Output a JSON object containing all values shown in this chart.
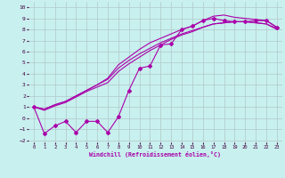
{
  "xlabel": "Windchill (Refroidissement éolien,°C)",
  "xlim": [
    -0.5,
    23.5
  ],
  "ylim": [
    -2.2,
    10.5
  ],
  "xticks": [
    0,
    1,
    2,
    3,
    4,
    5,
    6,
    7,
    8,
    9,
    10,
    11,
    12,
    13,
    14,
    15,
    16,
    17,
    18,
    19,
    20,
    21,
    22,
    23
  ],
  "yticks": [
    -2,
    -1,
    0,
    1,
    2,
    3,
    4,
    5,
    6,
    7,
    8,
    9,
    10
  ],
  "bg_color": "#c8f0ee",
  "line_color": "#aa00aa",
  "grid_color": "#b0c8c8",
  "line_jagged": [
    1,
    -1.4,
    -0.7,
    -0.3,
    -1.3,
    -0.3,
    -0.3,
    -1.3,
    0.1,
    2.5,
    4.5,
    4.7,
    6.6,
    6.7,
    8.0,
    8.3,
    8.8,
    9.0,
    8.8,
    8.7,
    8.7,
    8.8,
    8.8,
    8.2
  ],
  "line_smooth1": [
    1,
    0.8,
    1.2,
    1.5,
    2.0,
    2.5,
    3.0,
    3.5,
    4.5,
    5.2,
    5.8,
    6.3,
    6.8,
    7.2,
    7.6,
    7.9,
    8.2,
    8.5,
    8.6,
    8.7,
    8.7,
    8.6,
    8.5,
    8.1
  ],
  "line_smooth2": [
    1,
    0.8,
    1.2,
    1.5,
    2.0,
    2.5,
    3.0,
    3.6,
    4.8,
    5.5,
    6.2,
    6.8,
    7.2,
    7.6,
    8.0,
    8.3,
    8.8,
    9.2,
    9.3,
    9.1,
    9.0,
    8.9,
    8.8,
    8.2
  ],
  "line_smooth3": [
    1,
    0.7,
    1.1,
    1.4,
    1.9,
    2.4,
    2.8,
    3.2,
    4.2,
    4.9,
    5.5,
    6.1,
    6.6,
    7.1,
    7.5,
    7.8,
    8.2,
    8.5,
    8.6,
    8.7,
    8.7,
    8.6,
    8.5,
    8.0
  ],
  "marker": "D",
  "markersize": 2.0,
  "linewidth": 0.8
}
